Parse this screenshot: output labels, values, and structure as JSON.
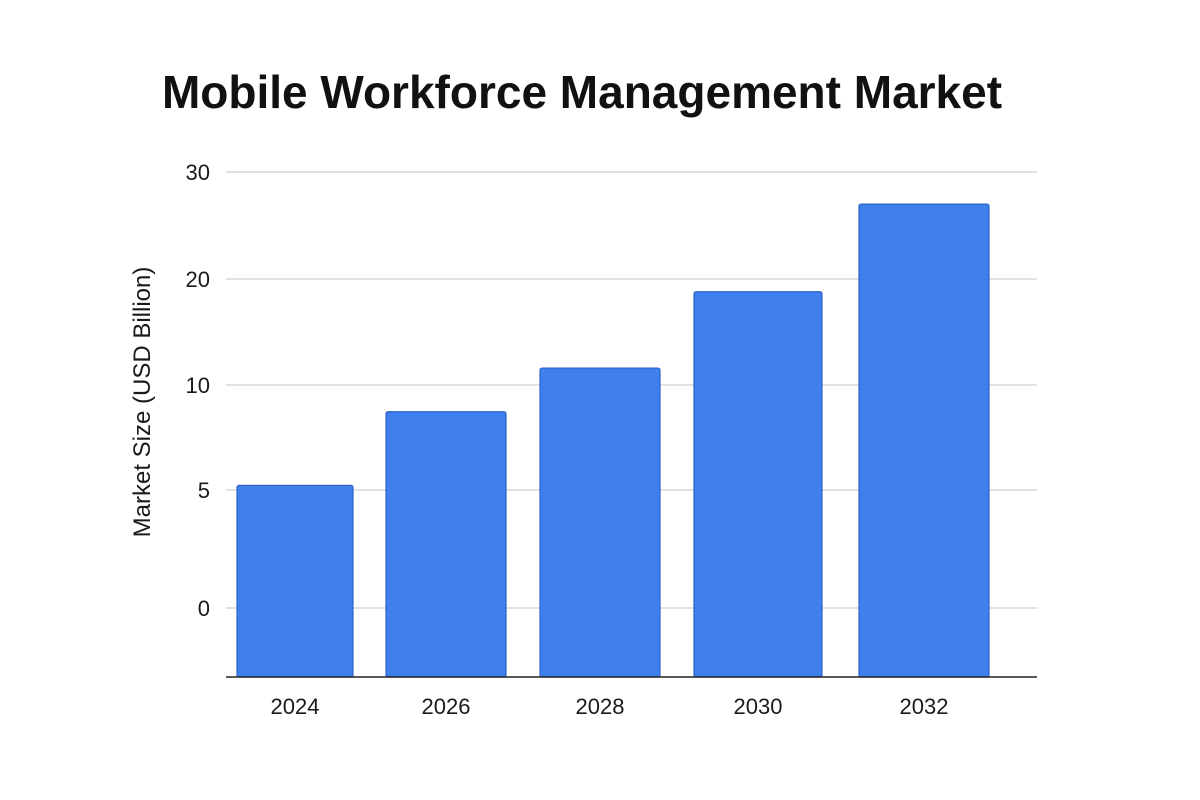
{
  "chart_data": {
    "type": "bar",
    "title": "Mobile Workforce Management Market",
    "xlabel": "",
    "ylabel": "Market Size (USD Billion)",
    "categories": [
      "2024",
      "2026",
      "2028",
      "2030",
      "2032"
    ],
    "values": [
      5.5,
      8.8,
      11.6,
      18.8,
      27.0
    ],
    "y_tick_labels": [
      "0",
      "5",
      "10",
      "20",
      "30"
    ],
    "grid": true,
    "bar_color": "#4080ec",
    "bar_edge_color": "#2d62c8"
  }
}
